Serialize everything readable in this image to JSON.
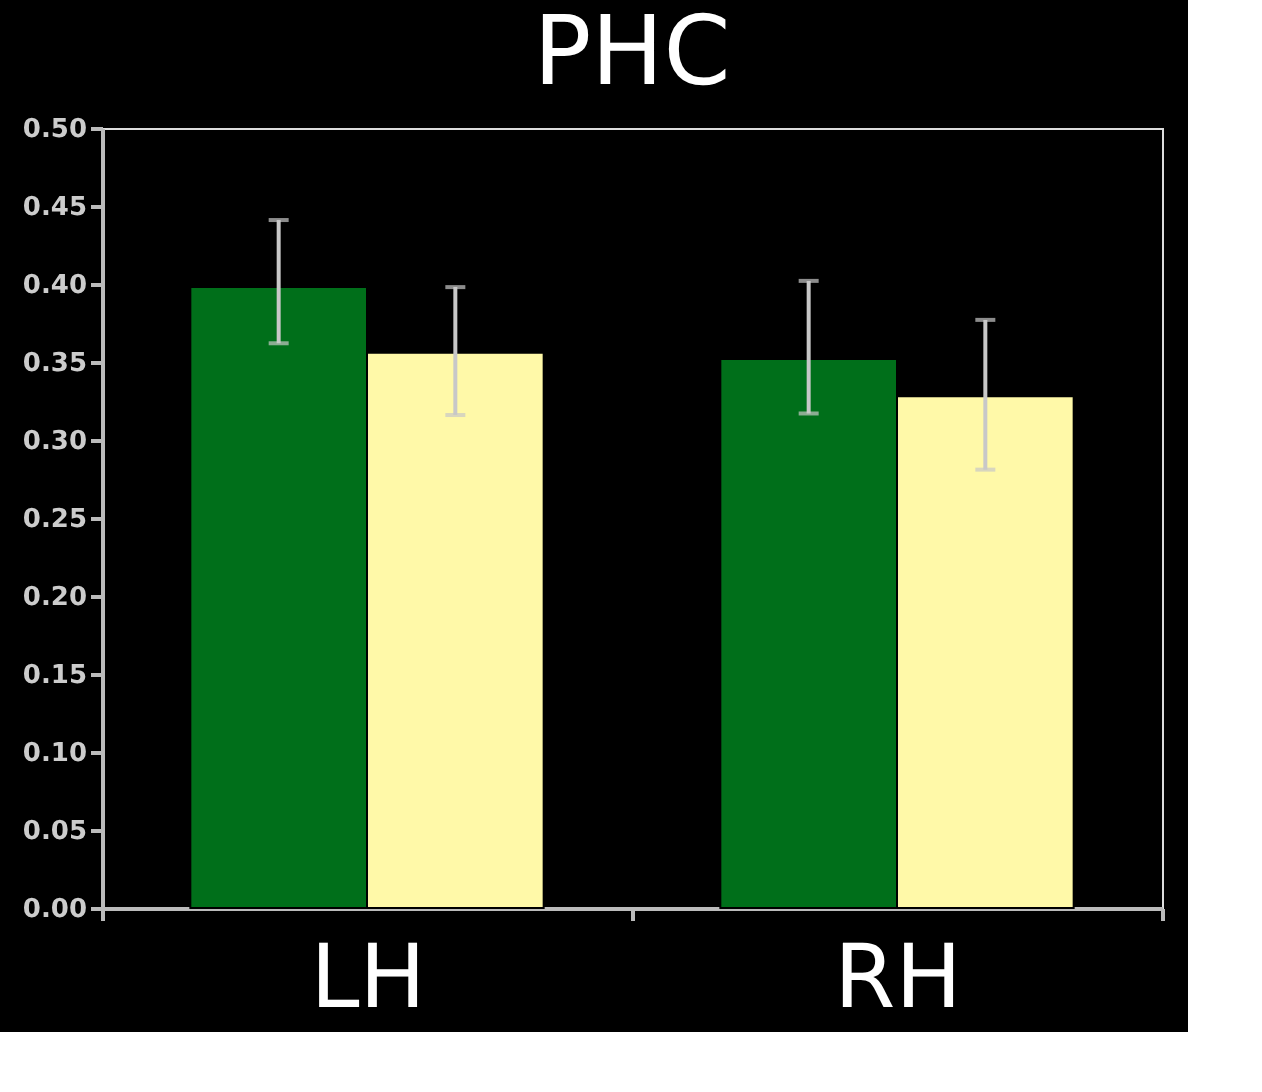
{
  "chart_data": {
    "type": "bar",
    "title": "PHC",
    "categories": [
      "LH",
      "RH"
    ],
    "series": [
      {
        "color": "#006f1a",
        "values": [
          0.398,
          0.352
        ],
        "errors": [
          [
            0.362,
            0.441
          ],
          [
            0.317,
            0.402
          ]
        ]
      },
      {
        "color": "#fff9a8",
        "values": [
          0.356,
          0.328
        ],
        "errors": [
          [
            0.316,
            0.398
          ],
          [
            0.281,
            0.377
          ]
        ]
      }
    ],
    "ylim": [
      0,
      0.5
    ],
    "yticks": [
      {
        "value": 0,
        "label": "0.00"
      },
      {
        "value": 0.05,
        "label": "0.05"
      },
      {
        "value": 0.1,
        "label": "0.10"
      },
      {
        "value": 0.15,
        "label": "0.15"
      },
      {
        "value": 0.2,
        "label": "0.20"
      },
      {
        "value": 0.25,
        "label": "0.25"
      },
      {
        "value": 0.3,
        "label": "0.30"
      },
      {
        "value": 0.35,
        "label": "0.35"
      },
      {
        "value": 0.4,
        "label": "0.40"
      },
      {
        "value": 0.45,
        "label": "0.45"
      },
      {
        "value": 0.5,
        "label": "0.50"
      }
    ],
    "grid": false,
    "legend": false
  }
}
